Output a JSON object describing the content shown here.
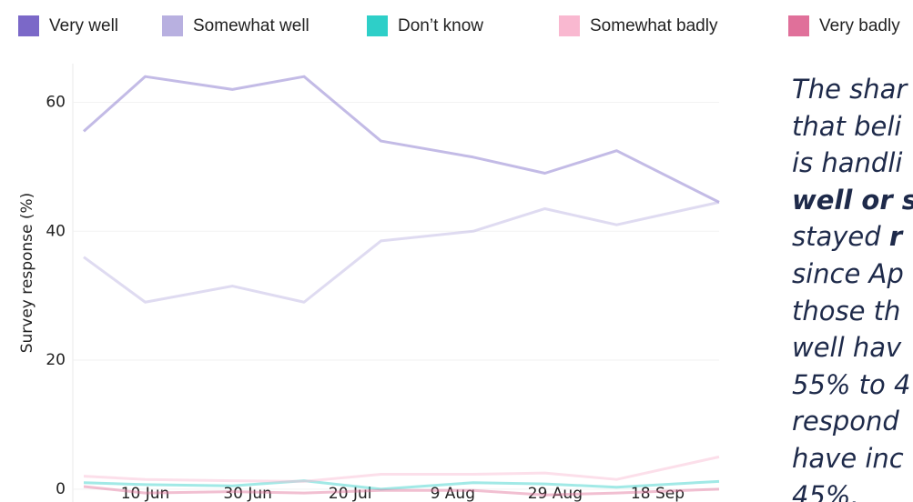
{
  "chart_data": {
    "type": "line",
    "y_label": "Survey response (%)",
    "x": [
      "29 May",
      "10 Jun",
      "27 Jun",
      "11 Jul",
      "26 Jul",
      "13 Aug",
      "27 Aug",
      "10 Sep",
      "30 Sep"
    ],
    "xlim": [
      "29 May",
      "30 Sep"
    ],
    "xticks": [
      "10 Jun",
      "30 Jun",
      "20 Jul",
      "9 Aug",
      "29 Aug",
      "18 Sep"
    ],
    "ylim": [
      -2,
      66
    ],
    "yticks": [
      0,
      20,
      40,
      60
    ],
    "grid": true,
    "line_opacity": 0.45,
    "series": [
      {
        "name": "Very well",
        "color": "#7b68c8",
        "values": [
          55.5,
          64,
          62,
          64,
          54,
          51.5,
          49,
          52.5,
          44.5
        ]
      },
      {
        "name": "Somewhat well",
        "color": "#b8b0e0",
        "values": [
          36,
          29,
          31.5,
          29,
          38.5,
          40,
          43.5,
          41,
          44.5
        ]
      },
      {
        "name": "Don’t know",
        "color": "#2ecfc8",
        "values": [
          1,
          0.7,
          0.5,
          1.3,
          0,
          1,
          0.8,
          0.3,
          1.2
        ]
      },
      {
        "name": "Somewhat badly",
        "color": "#f9b8d0",
        "values": [
          2,
          1.5,
          1.3,
          1.2,
          2.3,
          2.3,
          2.5,
          1.5,
          5
        ]
      },
      {
        "name": "Very badly",
        "color": "#e0709a",
        "values": [
          0.4,
          -0.6,
          -0.4,
          -0.6,
          -0.2,
          -0.2,
          -0.9,
          -0.6,
          0
        ]
      }
    ],
    "annotation": [
      {
        "text": "The shar"
      },
      {
        "text": "that beli"
      },
      {
        "text": "is handli"
      },
      {
        "text": "well or s",
        "bold": true
      },
      {
        "text": "stayed ",
        "bold_tail": "r"
      },
      {
        "text": "since Ap"
      },
      {
        "text": "those th"
      },
      {
        "text": "well hav"
      },
      {
        "text": "55% to 4"
      },
      {
        "text": "respond"
      },
      {
        "text": "have inc"
      },
      {
        "text": "45%."
      }
    ]
  }
}
